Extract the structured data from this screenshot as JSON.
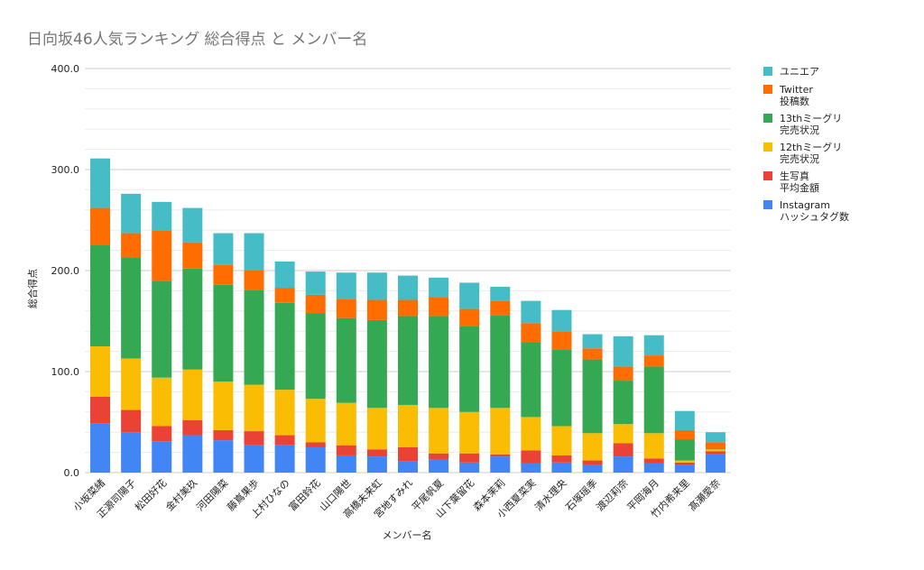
{
  "chart_data": {
    "type": "bar",
    "stacked": true,
    "title": "日向坂46人気ランキング 総合得点 と メンバー名",
    "xlabel": "メンバー名",
    "ylabel": "総合得点",
    "ylim": [
      0,
      400
    ],
    "yticks": [
      "0.0",
      "100.0",
      "200.0",
      "300.0",
      "400.0"
    ],
    "grid": true,
    "legend_position": "right",
    "categories": [
      "小坂菜緒",
      "正源司陽子",
      "松田好花",
      "金村美玖",
      "河田陽菜",
      "藤嶌果歩",
      "上村ひなの",
      "富田鈴花",
      "山口陽世",
      "高橋未来虹",
      "宮地すみれ",
      "平尾帆夏",
      "山下葉留花",
      "森本茉莉",
      "小西夏菜実",
      "清水理央",
      "石塚瑶季",
      "渡辺莉奈",
      "平岡海月",
      "竹内希来里",
      "髙瀬愛奈"
    ],
    "series": [
      {
        "name": "Instagram ハッシュタグ数",
        "color": "#4285F4",
        "values": [
          49,
          40,
          31,
          37,
          32,
          27,
          27,
          25,
          17,
          16,
          11,
          13,
          10,
          16,
          9,
          10,
          8,
          16,
          9,
          8,
          18
        ]
      },
      {
        "name": "生写真 平均金額",
        "color": "#EA4335",
        "values": [
          26,
          22,
          15,
          15,
          10,
          14,
          10,
          5,
          10,
          7,
          14,
          6,
          9,
          2,
          13,
          7,
          4,
          13,
          5,
          2,
          3
        ]
      },
      {
        "name": "12thミーグリ 完売状況",
        "color": "#FBBC04",
        "values": [
          50,
          51,
          48,
          50,
          48,
          46,
          45,
          43,
          42,
          41,
          42,
          45,
          41,
          46,
          33,
          29,
          27,
          19,
          25,
          2,
          2
        ]
      },
      {
        "name": "13thミーグリ 完売状況",
        "color": "#34A853",
        "values": [
          100,
          100,
          96,
          100,
          96,
          94,
          86,
          85,
          84,
          87,
          88,
          91,
          85,
          92,
          74,
          76,
          73,
          43,
          66,
          21,
          1
        ]
      },
      {
        "name": "Twitter 投稿数",
        "color": "#FF6D01",
        "values": [
          37,
          24,
          50,
          26,
          20,
          19,
          15,
          18,
          19,
          20,
          16,
          19,
          17,
          14,
          19,
          18,
          11,
          14,
          11,
          9,
          6
        ]
      },
      {
        "name": "ユニエア",
        "color": "#46BDC6",
        "values": [
          49,
          39,
          28,
          34,
          31,
          37,
          26,
          23,
          26,
          27,
          24,
          19,
          26,
          14,
          22,
          21,
          14,
          30,
          20,
          19,
          10
        ]
      }
    ],
    "legend_entries": [
      {
        "line1": "ユニエア",
        "line2": "",
        "color": "#46BDC6"
      },
      {
        "line1": "Twitter",
        "line2": "投稿数",
        "color": "#FF6D01"
      },
      {
        "line1": "13thミーグリ",
        "line2": "完売状況",
        "color": "#34A853"
      },
      {
        "line1": "12thミーグリ",
        "line2": "完売状況",
        "color": "#FBBC04"
      },
      {
        "line1": "生写真",
        "line2": "平均金額",
        "color": "#EA4335"
      },
      {
        "line1": "Instagram",
        "line2": "ハッシュタグ数",
        "color": "#4285F4"
      }
    ]
  }
}
